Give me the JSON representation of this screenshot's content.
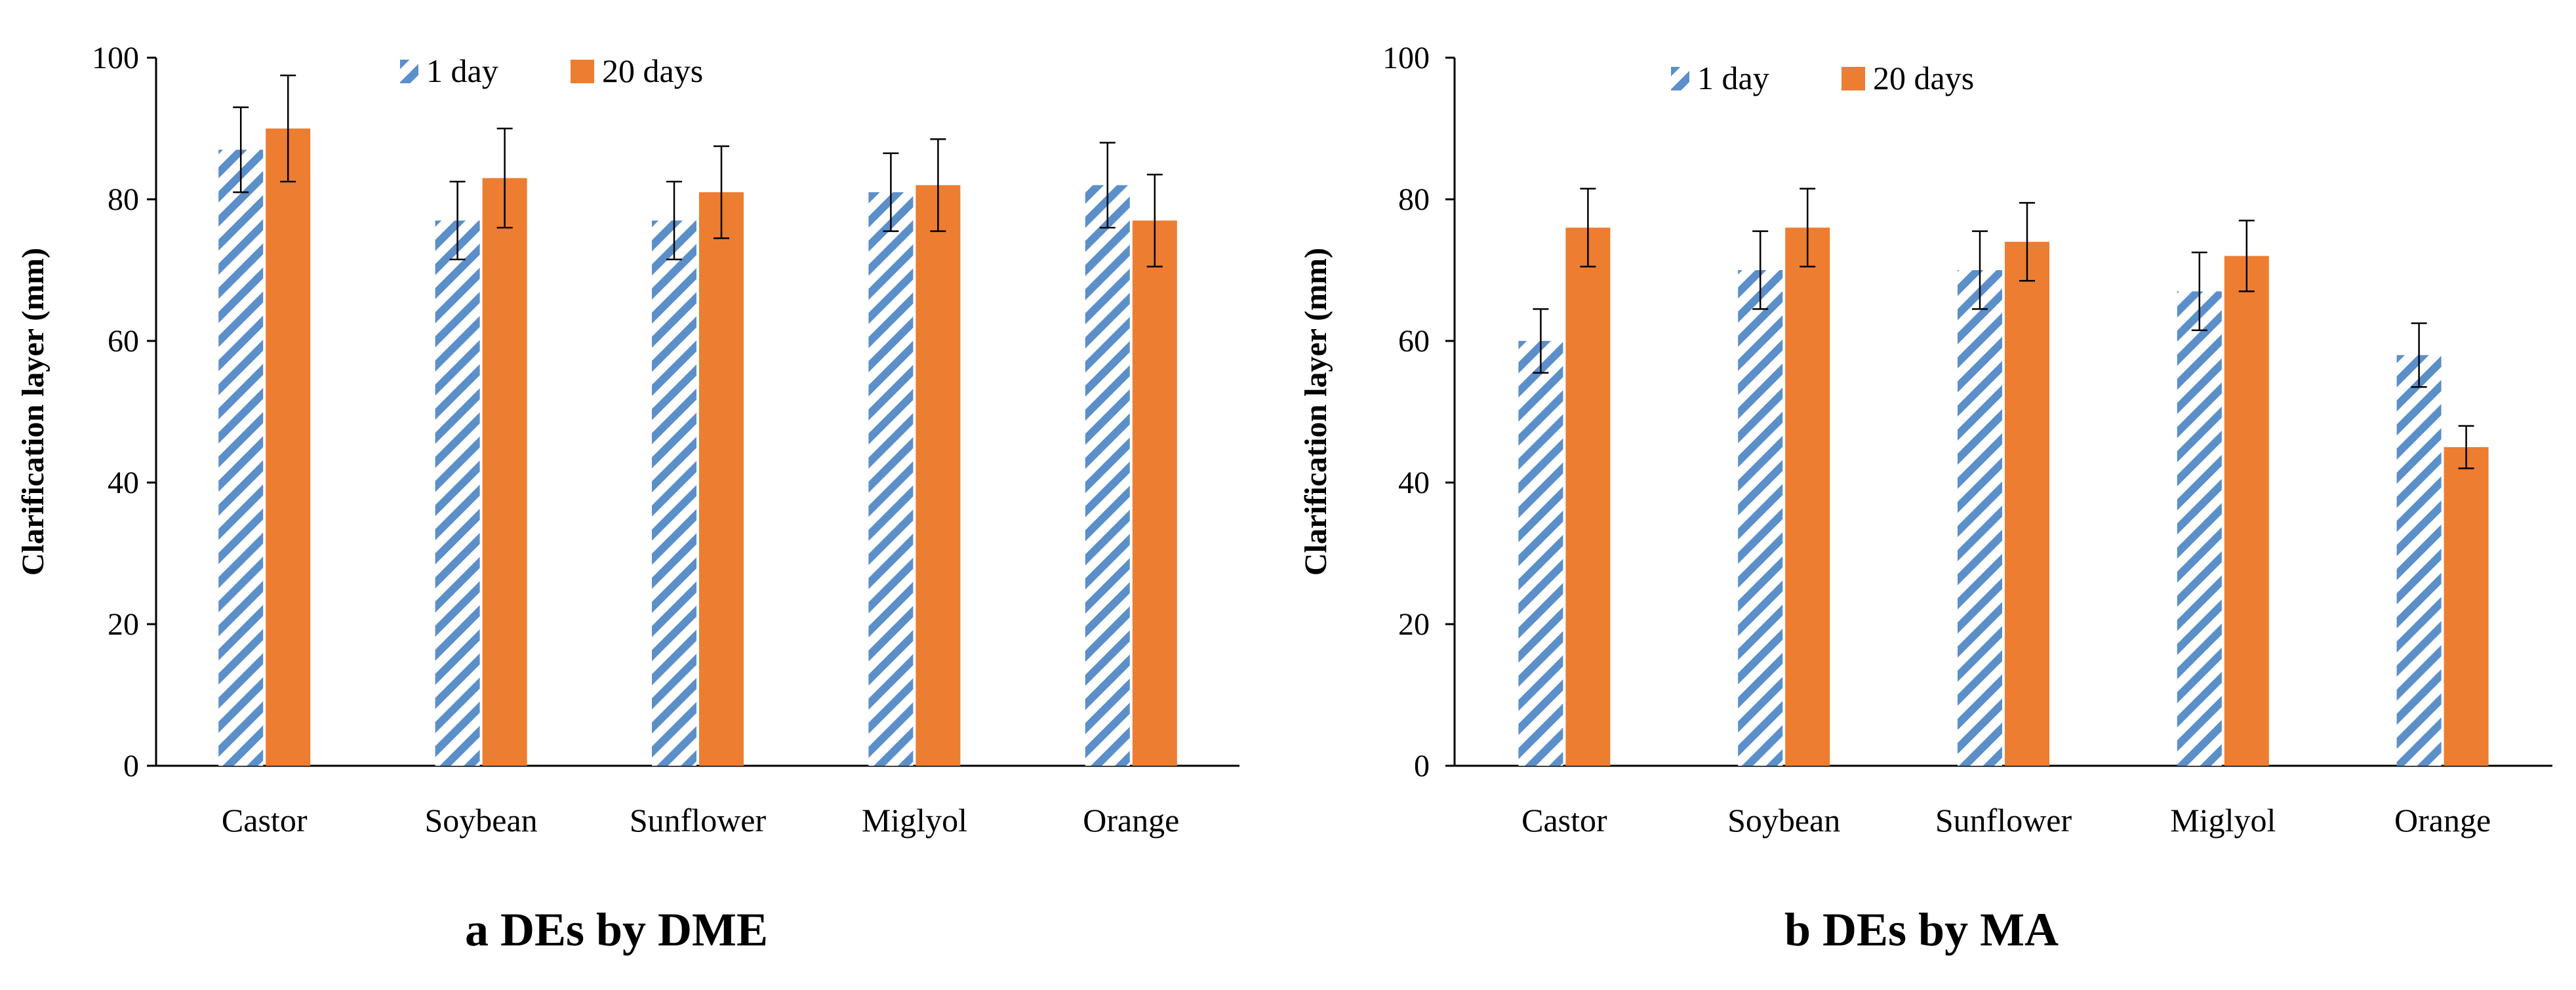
{
  "colors": {
    "series1_stripe": "#5b8fc9",
    "series2_fill": "#ed7d31",
    "axis": "#000000",
    "error_bar": "#000000"
  },
  "chart_data": [
    {
      "type": "bar",
      "caption": "a DEs by DME",
      "ylabel": "Clarification  layer (mm)",
      "xlabel": "",
      "ylim": [
        0,
        100
      ],
      "yticks": [
        0,
        20,
        40,
        60,
        80,
        100
      ],
      "grid": false,
      "legend_position": "top-center",
      "categories": [
        "Castor",
        "Soybean",
        "Sunflower",
        "Miglyol",
        "Orange"
      ],
      "series": [
        {
          "name": "1 day",
          "pattern": "diagonal-stripes",
          "values": [
            87,
            77,
            77,
            81,
            82
          ],
          "errors": [
            6,
            5.5,
            5.5,
            5.5,
            6
          ]
        },
        {
          "name": "20 days",
          "pattern": "solid",
          "values": [
            90,
            83,
            81,
            82,
            77
          ],
          "errors": [
            7.5,
            7,
            6.5,
            6.5,
            6.5
          ]
        }
      ]
    },
    {
      "type": "bar",
      "caption": "b DEs by MA",
      "ylabel": "Clarification  layer (mm)",
      "xlabel": "",
      "ylim": [
        0,
        100
      ],
      "yticks": [
        0,
        20,
        40,
        60,
        80,
        100
      ],
      "grid": false,
      "legend_position": "top-center",
      "categories": [
        "Castor",
        "Soybean",
        "Sunflower",
        "Miglyol",
        "Orange"
      ],
      "series": [
        {
          "name": "1 day",
          "pattern": "diagonal-stripes",
          "values": [
            60,
            70,
            70,
            67,
            58
          ],
          "errors": [
            4.5,
            5.5,
            5.5,
            5.5,
            4.5
          ]
        },
        {
          "name": "20 days",
          "pattern": "solid",
          "values": [
            76,
            76,
            74,
            72,
            45
          ],
          "errors": [
            5.5,
            5.5,
            5.5,
            5,
            3
          ]
        }
      ]
    }
  ]
}
